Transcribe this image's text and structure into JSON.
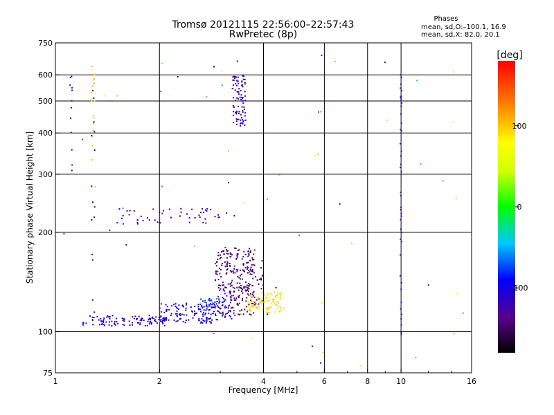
{
  "chart_data": {
    "type": "scatter",
    "title": "Tromsø 20121115 22:56:00–22:57:43",
    "subtitle": "RwPretec (8p)",
    "xlabel": "Frequency [MHz]",
    "ylabel": "Stationary phase Virtual Height [km]",
    "x_scale": "log",
    "y_scale": "log",
    "xlim": [
      1,
      16
    ],
    "ylim": [
      75,
      750
    ],
    "x_ticks": [
      1,
      2,
      4,
      6,
      8,
      10,
      16
    ],
    "y_ticks": [
      75,
      100,
      200,
      300,
      400,
      500,
      600,
      750
    ],
    "x_gridlines": [
      2,
      4,
      6,
      8,
      10
    ],
    "y_gridlines": [
      100,
      200,
      300,
      400,
      500,
      600
    ],
    "grid": true,
    "stats": {
      "title": "Phases",
      "line1": "mean, sd,O:–100.1, 16.9",
      "line2": "mean, sd,X:  82.0, 20.1"
    },
    "colorbar": {
      "label": "[deg]",
      "range": [
        -180,
        180
      ],
      "ticks": [
        100,
        0,
        -100
      ],
      "placement": "right"
    },
    "clusters": [
      {
        "x_range": [
          1.2,
          2.1
        ],
        "y_range": [
          104,
          112
        ],
        "phase": -110,
        "count": 110
      },
      {
        "x_range": [
          2.0,
          2.9
        ],
        "y_range": [
          106,
          122
        ],
        "phase": -105,
        "count": 110
      },
      {
        "x_range": [
          2.6,
          3.3
        ],
        "y_range": [
          108,
          128
        ],
        "phase": -100,
        "count": 60
      },
      {
        "x_range": [
          2.7,
          3.0
        ],
        "y_range": [
          118,
          126
        ],
        "phase": -70,
        "count": 15
      },
      {
        "x_range": [
          2.9,
          3.8
        ],
        "y_range": [
          112,
          180
        ],
        "phase": -140,
        "count": 230
      },
      {
        "x_range": [
          3.1,
          4.0
        ],
        "y_range": [
          120,
          168
        ],
        "phase": -150,
        "count": 60
      },
      {
        "x_range": [
          3.6,
          4.6
        ],
        "y_range": [
          114,
          132
        ],
        "phase": 95,
        "count": 90
      },
      {
        "x_range": [
          1.5,
          3.3
        ],
        "y_range": [
          212,
          236
        ],
        "phase": -110,
        "count": 50
      },
      {
        "x_range": [
          3.25,
          3.55
        ],
        "y_range": [
          420,
          600
        ],
        "phase": -115,
        "count": 90
      },
      {
        "x_range": [
          1.1,
          1.12
        ],
        "y_range": [
          280,
          600
        ],
        "phase": -110,
        "count": 12
      },
      {
        "x_range": [
          1.27,
          1.3
        ],
        "y_range": [
          310,
          650
        ],
        "phase": 105,
        "count": 20
      },
      {
        "x_range": [
          1.27,
          1.3
        ],
        "y_range": [
          88,
          560
        ],
        "phase": -100,
        "count": 15
      },
      {
        "x_range": [
          9.95,
          10.05
        ],
        "y_range": [
          95,
          640
        ],
        "phase": -110,
        "count": 45
      },
      {
        "x_range": [
          1.0,
          16.0
        ],
        "y_range": [
          78,
          700
        ],
        "phase": 0,
        "count": 60
      }
    ]
  }
}
